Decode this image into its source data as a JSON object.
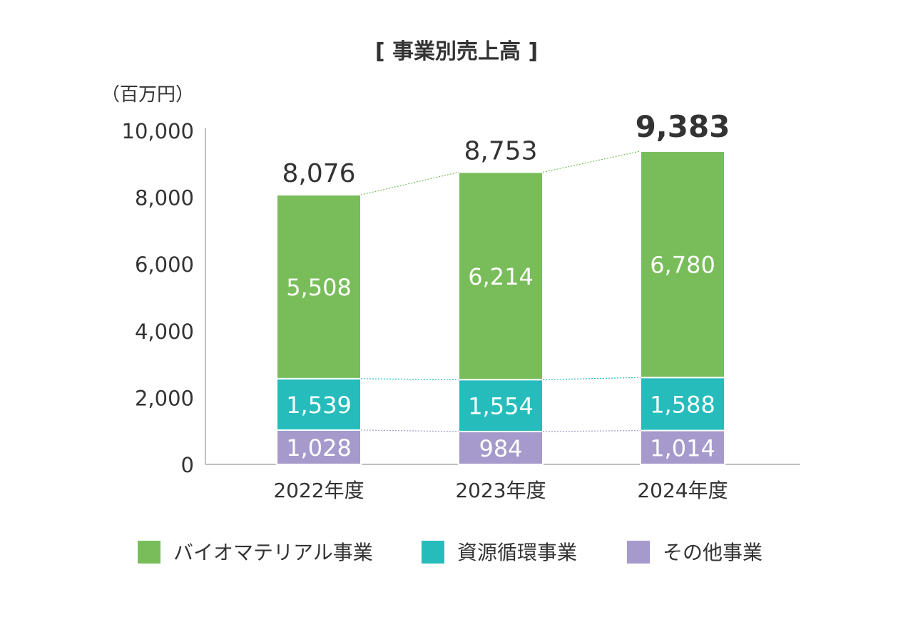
{
  "chart_data": {
    "type": "bar",
    "stacked": true,
    "title": "[ 事業別売上高 ]",
    "unit": "（百万円）",
    "categories": [
      "2022年度",
      "2023年度",
      "2024年度"
    ],
    "series": [
      {
        "name": "その他事業",
        "values": [
          1028,
          984,
          1014
        ],
        "color": "#a59acb"
      },
      {
        "name": "資源循環事業",
        "values": [
          1539,
          1554,
          1588
        ],
        "color": "#26bcbc"
      },
      {
        "name": "バイオマテリアル事業",
        "values": [
          5508,
          6214,
          6780
        ],
        "color": "#78bd5a"
      }
    ],
    "totals": [
      8076,
      8753,
      9383
    ],
    "total_labels": [
      "8,076",
      "8,753",
      "9,383"
    ],
    "ylim": [
      0,
      10000
    ],
    "yticks": [
      0,
      2000,
      4000,
      6000,
      8000,
      10000
    ],
    "ytick_labels": [
      "0",
      "2,000",
      "4,000",
      "6,000",
      "8,000",
      "10,000"
    ],
    "legend_order": [
      "バイオマテリアル事業",
      "資源循環事業",
      "その他事業"
    ],
    "legend_position": "bottom",
    "grid": false
  }
}
